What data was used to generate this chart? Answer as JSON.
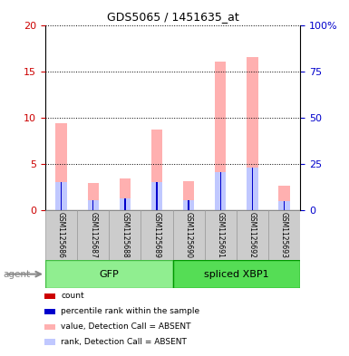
{
  "title": "GDS5065 / 1451635_at",
  "samples": [
    "GSM1125686",
    "GSM1125687",
    "GSM1125688",
    "GSM1125689",
    "GSM1125690",
    "GSM1125691",
    "GSM1125692",
    "GSM1125693"
  ],
  "value_absent": [
    9.4,
    2.9,
    3.4,
    8.7,
    3.1,
    16.0,
    16.5,
    2.6
  ],
  "rank_absent": [
    3.0,
    1.1,
    1.3,
    3.0,
    1.1,
    4.1,
    4.6,
    1.0
  ],
  "percentile_rank": [
    3.0,
    1.1,
    1.3,
    3.0,
    1.1,
    4.1,
    4.6,
    1.0
  ],
  "ylim_left": [
    0,
    20
  ],
  "ylim_right": [
    0,
    100
  ],
  "yticks_left": [
    0,
    5,
    10,
    15,
    20
  ],
  "yticks_right": [
    0,
    25,
    50,
    75,
    100
  ],
  "ytick_labels_right": [
    "0",
    "25",
    "50",
    "75",
    "100%"
  ],
  "color_count": "#cc0000",
  "color_percentile": "#0000cc",
  "color_value_absent": "#ffb0b0",
  "color_rank_absent": "#c0c8ff",
  "left_tick_color": "#cc0000",
  "right_tick_color": "#0000cc",
  "gfp_color": "#90ee90",
  "gfp_edge": "#44bb44",
  "xbp_color": "#55dd55",
  "xbp_edge": "#009900",
  "sample_bg": "#cccccc",
  "agent_color": "#888888"
}
